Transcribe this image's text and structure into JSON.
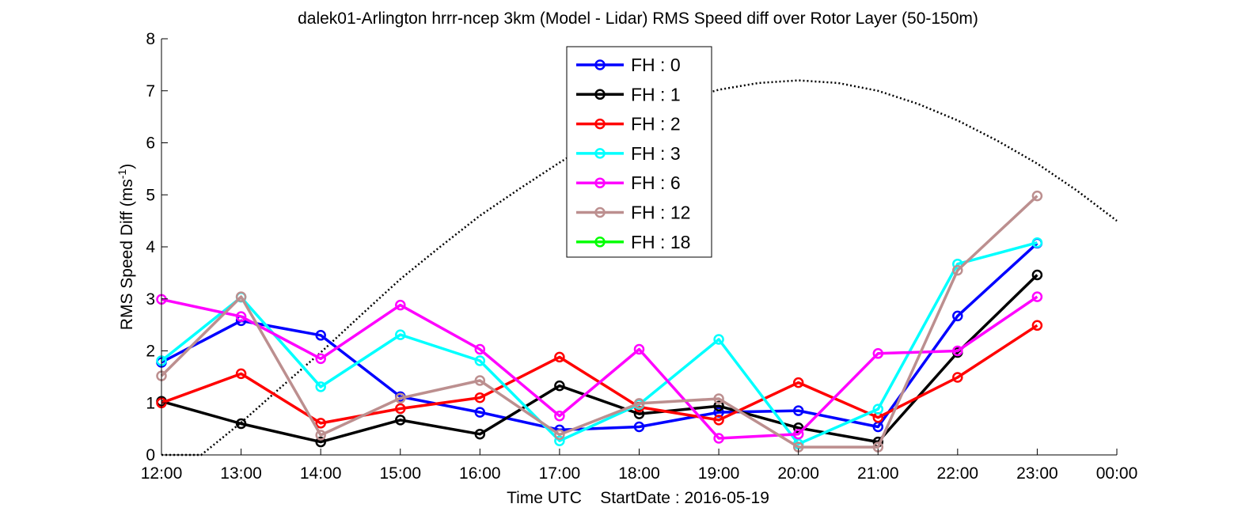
{
  "chart_data": {
    "type": "line",
    "title": "dalek01-Arlington hrrr-ncep 3km (Model - Lidar) RMS Speed diff over Rotor Layer (50-150m)",
    "xlabel": "Time UTC    StartDate : 2016-05-19",
    "ylabel": "RMS Speed Diff (ms",
    "ylabel_sup": "-1",
    "ylabel_close": ")",
    "x_tick_labels": [
      "12:00",
      "13:00",
      "14:00",
      "15:00",
      "16:00",
      "17:00",
      "18:00",
      "19:00",
      "20:00",
      "21:00",
      "22:00",
      "23:00",
      "00:00"
    ],
    "y_ticks": [
      0,
      1,
      2,
      3,
      4,
      5,
      6,
      7,
      8
    ],
    "x_range_hours": [
      12,
      24
    ],
    "ylim": [
      0,
      8
    ],
    "grid": false,
    "legend_position": "top-center",
    "series": [
      {
        "name": "FH : 0",
        "color": "#0000ff",
        "x": [
          12,
          13,
          14,
          15,
          16,
          17,
          18,
          19,
          20,
          21,
          22,
          23
        ],
        "values": [
          1.78,
          2.58,
          2.3,
          1.12,
          0.82,
          0.48,
          0.54,
          0.82,
          0.85,
          0.54,
          2.67,
          4.07
        ]
      },
      {
        "name": "FH : 1",
        "color": "#000000",
        "x": [
          12,
          13,
          14,
          15,
          16,
          17,
          18,
          19,
          20,
          21,
          22,
          23
        ],
        "values": [
          1.03,
          0.6,
          0.25,
          0.67,
          0.4,
          1.33,
          0.79,
          0.94,
          0.52,
          0.25,
          1.97,
          3.46
        ]
      },
      {
        "name": "FH : 2",
        "color": "#ff0000",
        "x": [
          12,
          13,
          14,
          15,
          16,
          17,
          18,
          19,
          20,
          21,
          22,
          23
        ],
        "values": [
          1.0,
          1.56,
          0.61,
          0.89,
          1.1,
          1.88,
          0.92,
          0.67,
          1.39,
          0.72,
          1.49,
          2.49
        ]
      },
      {
        "name": "FH : 3",
        "color": "#00ffff",
        "x": [
          12,
          13,
          14,
          15,
          16,
          17,
          18,
          19,
          20,
          21,
          22,
          23
        ],
        "values": [
          1.81,
          3.03,
          1.31,
          2.31,
          1.81,
          0.27,
          0.97,
          2.22,
          0.21,
          0.88,
          3.67,
          4.08
        ]
      },
      {
        "name": "FH : 6",
        "color": "#ff00ff",
        "x": [
          12,
          13,
          14,
          15,
          16,
          17,
          18,
          19,
          20,
          21,
          22,
          23
        ],
        "values": [
          2.99,
          2.66,
          1.85,
          2.88,
          2.03,
          0.75,
          2.03,
          0.32,
          0.4,
          1.95,
          2.0,
          3.04
        ]
      },
      {
        "name": "FH : 12",
        "color": "#bc8f8f",
        "x": [
          12,
          13,
          14,
          15,
          16,
          17,
          18,
          19,
          20,
          21,
          22,
          23
        ],
        "values": [
          1.52,
          3.04,
          0.38,
          1.09,
          1.43,
          0.39,
          0.99,
          1.08,
          0.15,
          0.15,
          3.55,
          4.98
        ]
      },
      {
        "name": "FH : 18",
        "color": "#00ff00",
        "x": [],
        "values": []
      }
    ],
    "reference_curve": {
      "style": "dotted",
      "color": "#000000",
      "x": [
        12,
        12.5,
        13,
        13.5,
        14,
        14.5,
        15,
        15.5,
        16,
        16.5,
        17,
        17.5,
        18,
        18.5,
        19,
        19.5,
        20,
        20.5,
        21,
        21.5,
        22,
        22.5,
        23,
        23.5,
        24
      ],
      "values": [
        0,
        0,
        0.62,
        1.3,
        1.97,
        2.68,
        3.38,
        4.0,
        4.6,
        5.12,
        5.62,
        6.08,
        6.48,
        6.8,
        7.02,
        7.15,
        7.2,
        7.15,
        7.0,
        6.75,
        6.43,
        6.04,
        5.6,
        5.08,
        4.5
      ]
    }
  }
}
